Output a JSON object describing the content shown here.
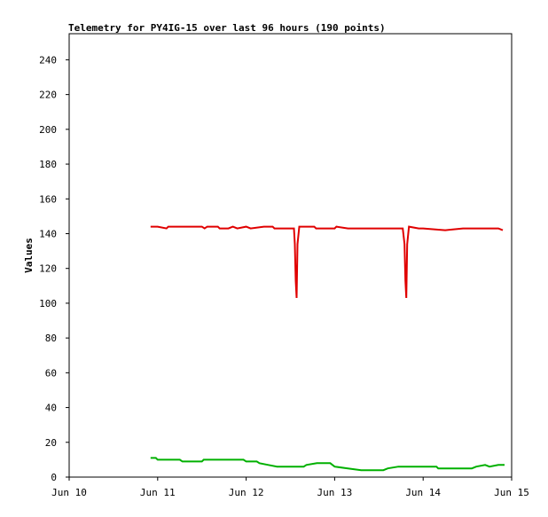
{
  "chart_data": {
    "type": "line",
    "title": "Telemetry for PY4IG-15 over last 96 hours (190 points)",
    "y_label": "Values",
    "xlim": [
      0,
      5
    ],
    "xticks": [
      {
        "value": 0,
        "label": "Jun 10"
      },
      {
        "value": 1,
        "label": "Jun 11"
      },
      {
        "value": 2,
        "label": "Jun 12"
      },
      {
        "value": 3,
        "label": "Jun 13"
      },
      {
        "value": 4,
        "label": "Jun 14"
      },
      {
        "value": 5,
        "label": "Jun 15"
      }
    ],
    "ylim": [
      0,
      255
    ],
    "yticks": [
      0,
      20,
      40,
      60,
      80,
      100,
      120,
      140,
      160,
      180,
      200,
      220,
      240
    ],
    "grid": false,
    "series": [
      {
        "color": "#e00000",
        "x": [
          0.92,
          1.0,
          1.1,
          1.12,
          1.5,
          1.53,
          1.56,
          1.68,
          1.7,
          1.8,
          1.85,
          1.9,
          2.0,
          2.05,
          2.2,
          2.3,
          2.32,
          2.54,
          2.55,
          2.56,
          2.57,
          2.58,
          2.6,
          2.77,
          2.79,
          3.0,
          3.02,
          3.15,
          3.25,
          3.3,
          3.77,
          3.79,
          3.8,
          3.81,
          3.82,
          3.84,
          3.95,
          4.0,
          4.25,
          4.45,
          4.85,
          4.9
        ],
        "values": [
          144,
          144,
          143,
          144,
          144,
          143,
          144,
          144,
          143,
          143,
          144,
          143,
          144,
          143,
          144,
          144,
          143,
          143,
          134,
          113,
          103,
          134,
          144,
          144,
          143,
          143,
          144,
          143,
          143,
          143,
          143,
          134,
          113,
          103,
          134,
          144,
          143,
          143,
          142,
          143,
          143,
          142
        ]
      },
      {
        "color": "#00b000",
        "x": [
          0.92,
          0.98,
          1.0,
          1.25,
          1.28,
          1.5,
          1.52,
          1.97,
          2.0,
          2.12,
          2.15,
          2.25,
          2.35,
          2.65,
          2.68,
          2.8,
          2.95,
          3.0,
          3.15,
          3.3,
          3.55,
          3.6,
          3.72,
          4.15,
          4.17,
          4.55,
          4.6,
          4.7,
          4.75,
          4.85,
          4.92
        ],
        "values": [
          11,
          11,
          10,
          10,
          9,
          9,
          10,
          10,
          9,
          9,
          8,
          7,
          6,
          6,
          7,
          8,
          8,
          6,
          5,
          4,
          4,
          5,
          6,
          6,
          5,
          5,
          6,
          7,
          6,
          7,
          7
        ]
      }
    ]
  }
}
